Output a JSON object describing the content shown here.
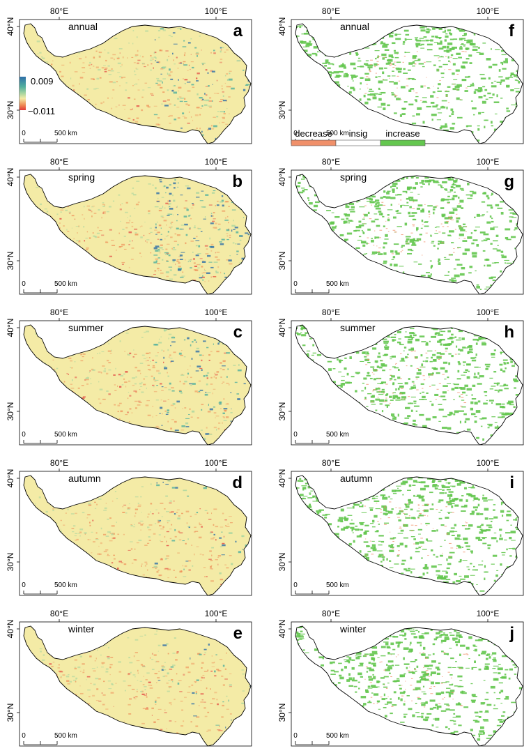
{
  "axis": {
    "lon_labels": [
      "80°E",
      "100°E"
    ],
    "lat_labels": [
      "40°N",
      "30°N"
    ],
    "scale_zero": "0",
    "scale_end": "500 km"
  },
  "legend_a": {
    "max": "0.009",
    "min": "−0.011"
  },
  "legend_f": [
    "decrease",
    "insig",
    "increase"
  ],
  "colors": {
    "base_left": "#f4eba6",
    "blue": "#2f6fa8",
    "teal": "#52b09e",
    "light_green": "#a9d6a0",
    "orange": "#ee8b55",
    "red": "#e23838",
    "significant_increase": "#64c74f",
    "significant_decrease": "#f0906a",
    "insignificant": "#ffffff"
  },
  "panels": [
    {
      "id": "a",
      "season": "annual"
    },
    {
      "id": "b",
      "season": "spring"
    },
    {
      "id": "c",
      "season": "summer"
    },
    {
      "id": "d",
      "season": "autumn"
    },
    {
      "id": "e",
      "season": "winter"
    },
    {
      "id": "f",
      "season": "annual"
    },
    {
      "id": "g",
      "season": "spring"
    },
    {
      "id": "h",
      "season": "summer"
    },
    {
      "id": "i",
      "season": "autumn"
    },
    {
      "id": "j",
      "season": "winter"
    }
  ]
}
